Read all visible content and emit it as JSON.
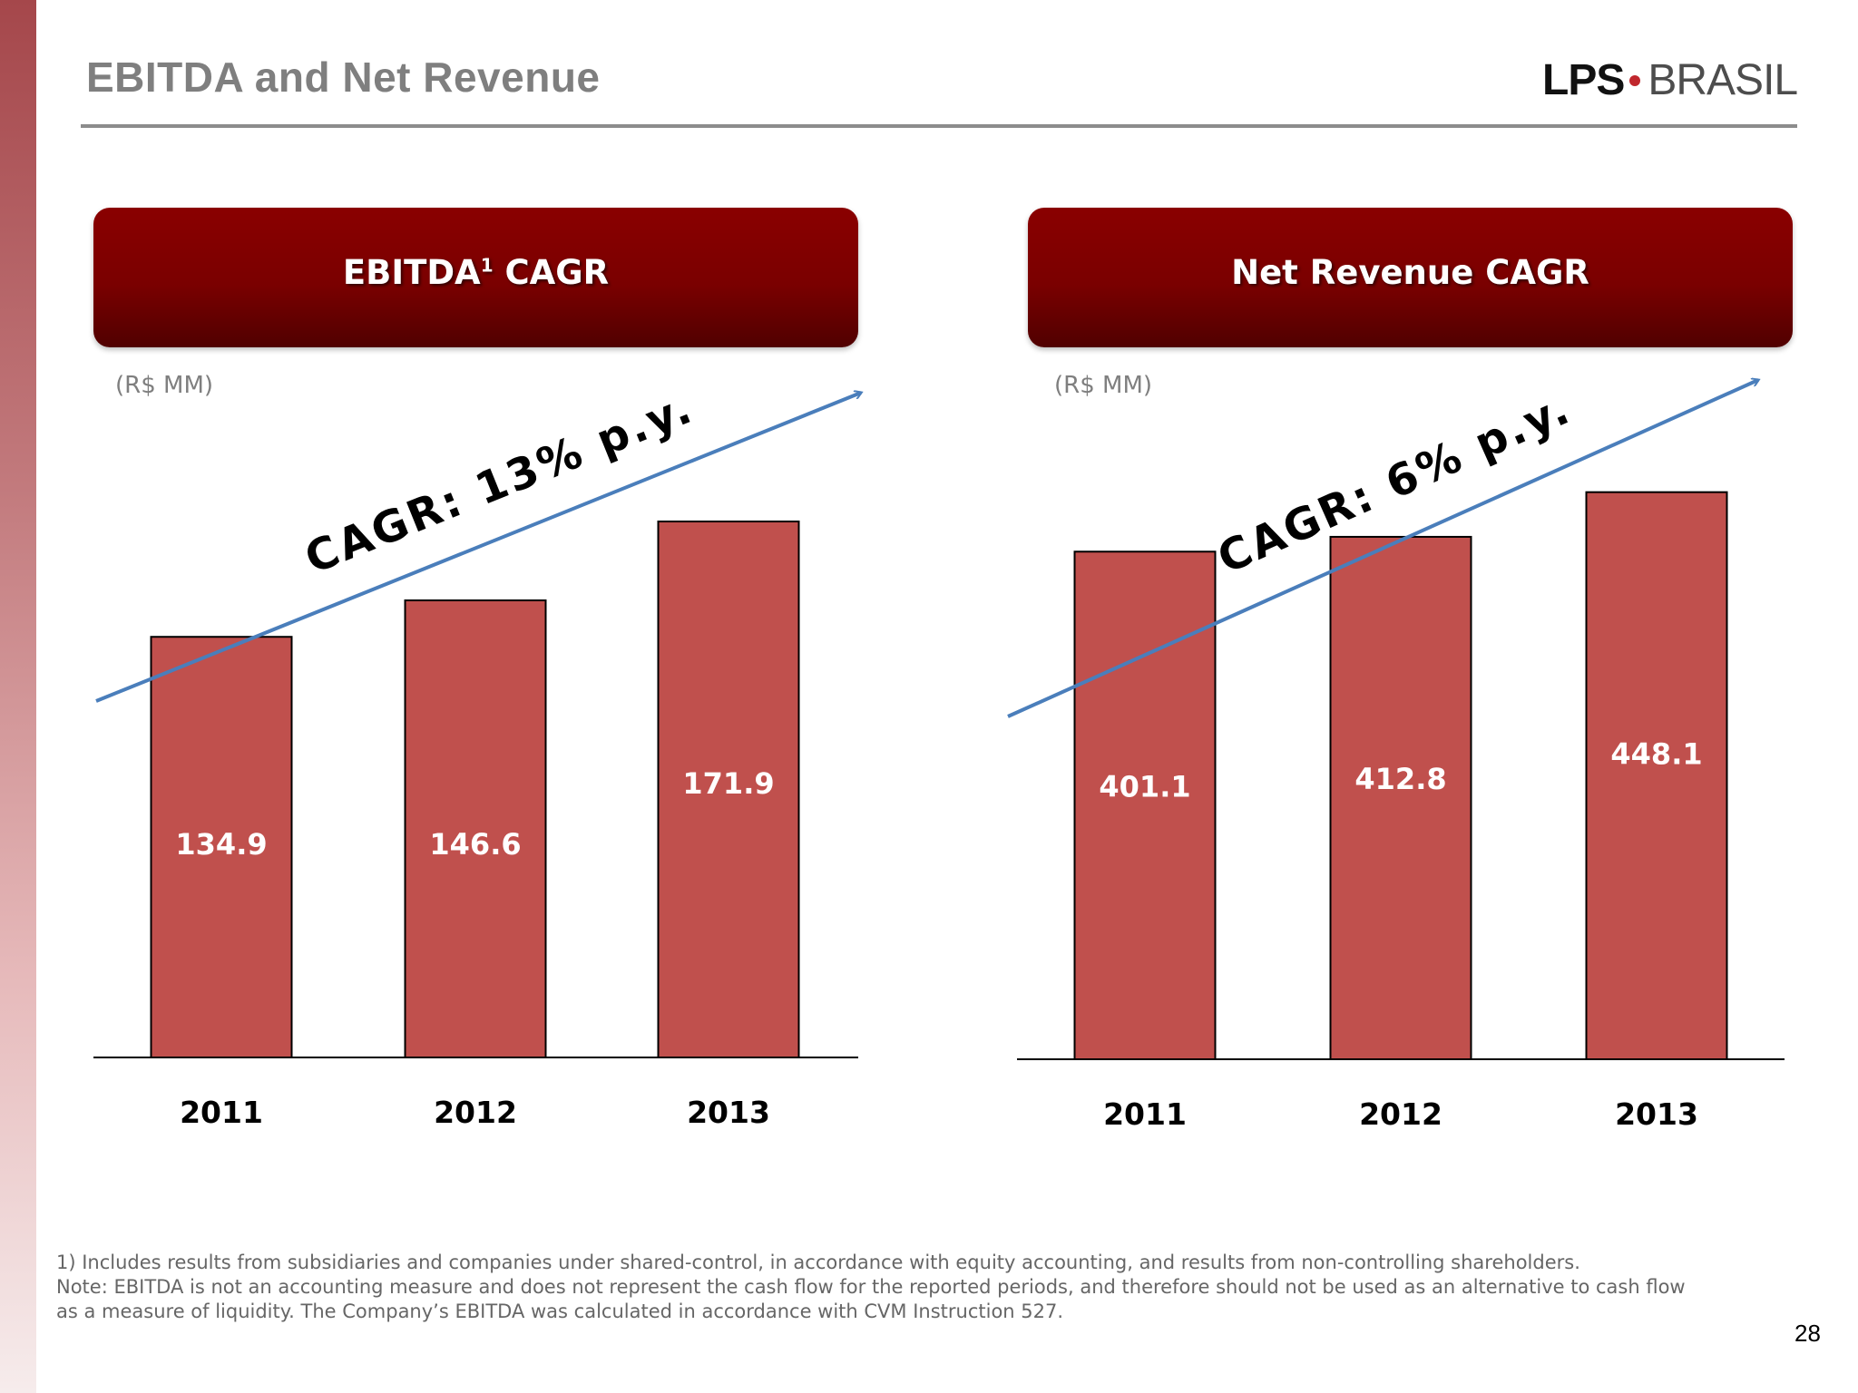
{
  "slide": {
    "title": "EBITDA and Net Revenue",
    "logo": {
      "primary": "LPS",
      "secondary": "BRASIL",
      "dot_color": "#c0272d"
    },
    "page_number": "28",
    "footnotes": [
      "1) Includes results from subsidiaries and companies under shared-control, in accordance with equity accounting, and results from non-controlling shareholders.",
      "Note: EBITDA is not an accounting measure and does not represent the cash flow for the reported periods, and therefore should not be used as an alternative to cash flow",
      "as a measure of liquidity. The Company’s EBITDA was calculated in accordance with CVM Instruction 527."
    ],
    "colors": {
      "bar": "#c0504d",
      "header": "#7a0000",
      "trend_arrow": "#4a7ebb",
      "title_gray": "#7f7f7f"
    }
  },
  "chart_data": [
    {
      "type": "bar",
      "title": "EBITDA",
      "title_superscript": "1",
      "title_suffix": " CAGR",
      "unit": "(R$ MM)",
      "categories": [
        "2011",
        "2012",
        "2013"
      ],
      "values": [
        134.9,
        146.6,
        171.9
      ],
      "value_labels": [
        "134.9",
        "146.6",
        "171.9"
      ],
      "annotation": "CAGR: 13% p.y.",
      "grid": false,
      "legend": "none"
    },
    {
      "type": "bar",
      "title": "Net Revenue CAGR",
      "unit": "(R$ MM)",
      "categories": [
        "2011",
        "2012",
        "2013"
      ],
      "values": [
        401.1,
        412.8,
        448.1
      ],
      "value_labels": [
        "401.1",
        "412.8",
        "448.1"
      ],
      "annotation": "CAGR: 6% p.y.",
      "grid": false,
      "legend": "none"
    }
  ]
}
